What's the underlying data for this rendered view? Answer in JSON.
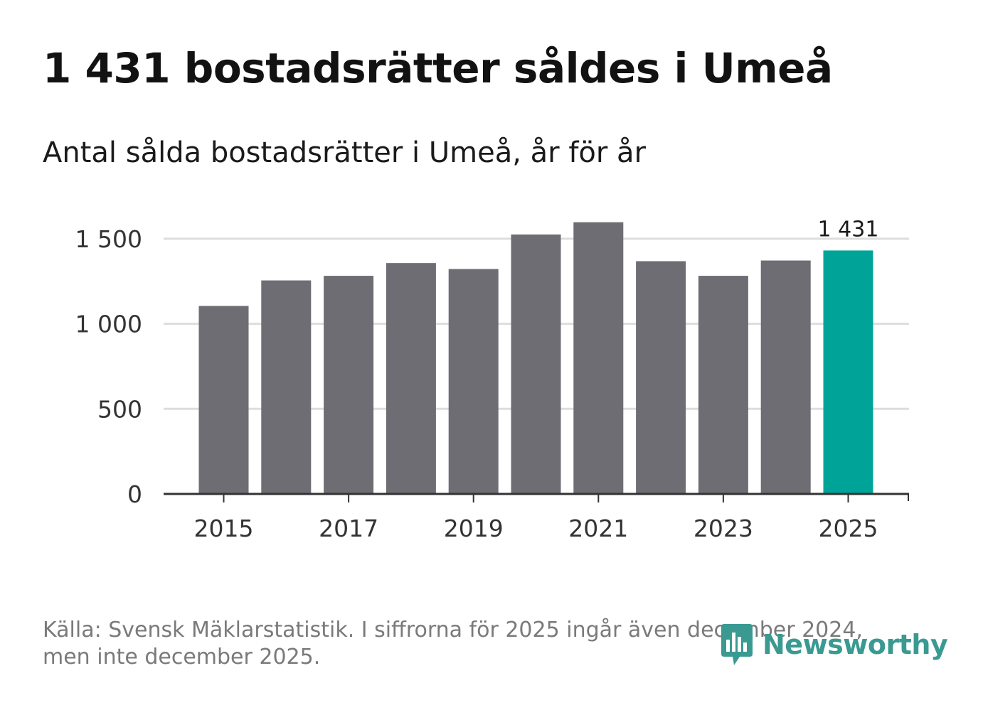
{
  "chart_data": {
    "type": "bar",
    "title": "1 431 bostadsrätter såldes i Umeå",
    "subtitle": "Antal sålda bostadsrätter i Umeå, år för år",
    "categories": [
      "2015",
      "2016",
      "2017",
      "2018",
      "2019",
      "2020",
      "2021",
      "2022",
      "2023",
      "2024",
      "2025"
    ],
    "values": [
      1105,
      1255,
      1282,
      1357,
      1322,
      1525,
      1597,
      1368,
      1282,
      1372,
      1431
    ],
    "x_tick_labels": [
      "2015",
      "2017",
      "2019",
      "2021",
      "2023",
      "2025"
    ],
    "y_tick_labels": [
      "0",
      "500",
      "1 000",
      "1 500"
    ],
    "y_ticks": [
      0,
      500,
      1000,
      1500
    ],
    "ylim": [
      0,
      1650
    ],
    "highlight": {
      "category": "2025",
      "label": "1 431"
    },
    "xlabel": "",
    "ylabel": "",
    "colors": {
      "bar": "#6e6d73",
      "highlight": "#00a398",
      "grid": "#dddddd",
      "axis": "#333333"
    }
  },
  "footer": {
    "source": "Källa: Svensk Mäklarstatistik. I siffrorna för 2025 ingår även december 2024, men inte december 2025.",
    "logo_text": "Newsworthy",
    "logo_icon": "bar-chart-speech-bubble-icon"
  }
}
